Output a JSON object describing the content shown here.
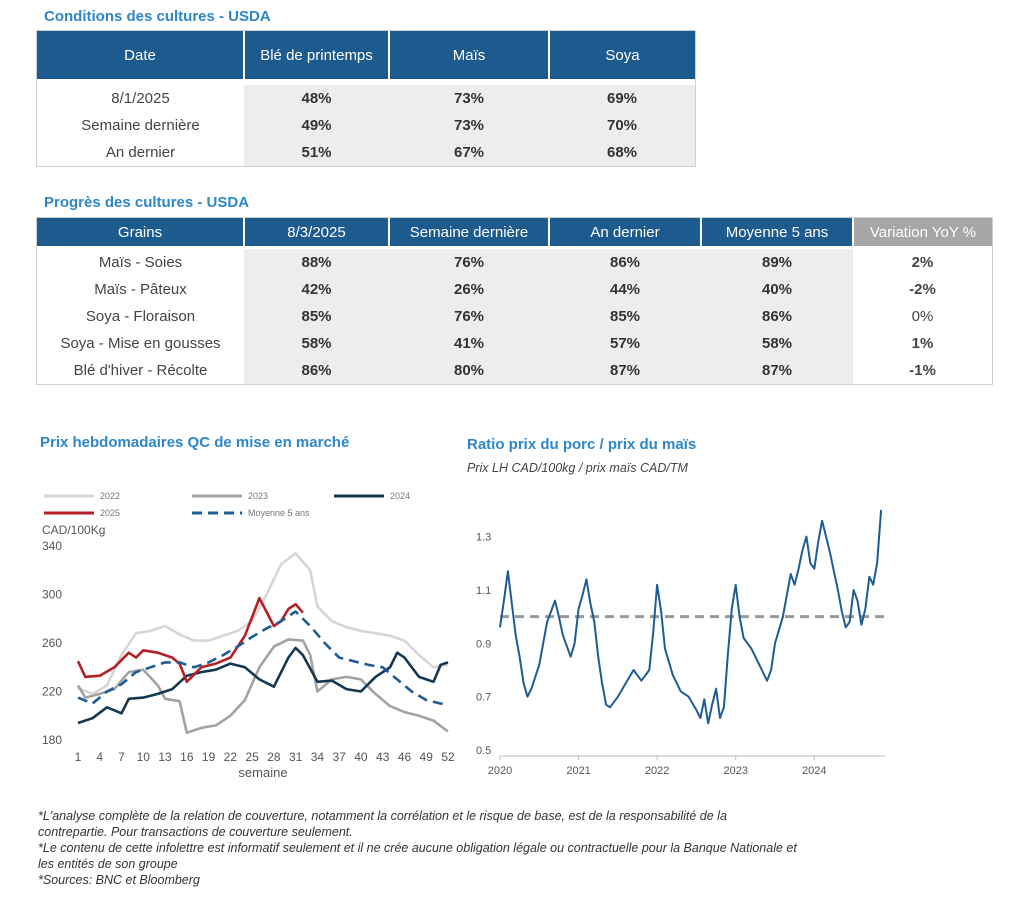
{
  "conditions": {
    "title": "Conditions des cultures - USDA",
    "headers": [
      "Date",
      "Blé de printemps",
      "Maïs",
      "Soya"
    ],
    "rows": [
      [
        "8/1/2025",
        "48%",
        "73%",
        "69%"
      ],
      [
        "Semaine dernière",
        "49%",
        "73%",
        "70%"
      ],
      [
        "An dernier",
        "51%",
        "67%",
        "68%"
      ]
    ]
  },
  "progress": {
    "title": "Progrès des cultures - USDA",
    "headers": [
      "Grains",
      "8/3/2025",
      "Semaine dernière",
      "An dernier",
      "Moyenne 5 ans",
      "Variation YoY %"
    ],
    "rows": [
      [
        "Maïs - Soies",
        "88%",
        "76%",
        "86%",
        "89%",
        "2%"
      ],
      [
        "Maïs - Pâteux",
        "42%",
        "26%",
        "44%",
        "40%",
        "-2%"
      ],
      [
        "Soya - Floraison",
        "85%",
        "76%",
        "85%",
        "86%",
        "0%"
      ],
      [
        "Soya - Mise en gousses",
        "58%",
        "41%",
        "57%",
        "58%",
        "1%"
      ],
      [
        "Blé d'hiver - Récolte",
        "86%",
        "80%",
        "87%",
        "87%",
        "-1%"
      ]
    ],
    "yoy_colors": {
      "positive": "#2c7a2c",
      "negative": "#b02020",
      "zero": "#333333"
    }
  },
  "chart_data": [
    {
      "type": "line",
      "title": "Prix hebdomadaires QC de mise en marché",
      "ylabel": "CAD/100Kg",
      "xlabel": "semaine",
      "ylim": [
        180,
        340
      ],
      "yticks": [
        180,
        220,
        260,
        300,
        340
      ],
      "xticks": [
        1,
        4,
        7,
        10,
        13,
        16,
        19,
        22,
        25,
        28,
        31,
        34,
        37,
        40,
        43,
        46,
        49,
        52
      ],
      "legend_position": "top",
      "series": [
        {
          "name": "2022",
          "color": "#d6d6d6",
          "dash": false,
          "points": [
            [
              1,
              223
            ],
            [
              3,
              218
            ],
            [
              5,
              225
            ],
            [
              7,
              250
            ],
            [
              9,
              268
            ],
            [
              11,
              270
            ],
            [
              13,
              274
            ],
            [
              15,
              267
            ],
            [
              17,
              262
            ],
            [
              19,
              262
            ],
            [
              21,
              266
            ],
            [
              23,
              270
            ],
            [
              25,
              278
            ],
            [
              27,
              300
            ],
            [
              29,
              325
            ],
            [
              31,
              334
            ],
            [
              33,
              320
            ],
            [
              34,
              290
            ],
            [
              36,
              278
            ],
            [
              38,
              273
            ],
            [
              40,
              270
            ],
            [
              42,
              268
            ],
            [
              44,
              266
            ],
            [
              46,
              262
            ],
            [
              48,
              250
            ],
            [
              50,
              240
            ],
            [
              52,
              242
            ]
          ]
        },
        {
          "name": "2023",
          "color": "#a3a3a3",
          "dash": false,
          "points": [
            [
              1,
              225
            ],
            [
              2,
              215
            ],
            [
              4,
              218
            ],
            [
              6,
              222
            ],
            [
              8,
              236
            ],
            [
              10,
              238
            ],
            [
              12,
              225
            ],
            [
              13,
              214
            ],
            [
              15,
              212
            ],
            [
              16,
              186
            ],
            [
              18,
              190
            ],
            [
              20,
              192
            ],
            [
              22,
              200
            ],
            [
              24,
              213
            ],
            [
              26,
              240
            ],
            [
              28,
              257
            ],
            [
              30,
              263
            ],
            [
              32,
              262
            ],
            [
              33,
              250
            ],
            [
              34,
              220
            ],
            [
              36,
              230
            ],
            [
              38,
              232
            ],
            [
              40,
              230
            ],
            [
              42,
              218
            ],
            [
              44,
              208
            ],
            [
              46,
              203
            ],
            [
              48,
              200
            ],
            [
              50,
              196
            ],
            [
              52,
              187
            ]
          ]
        },
        {
          "name": "2024",
          "color": "#16384f",
          "dash": false,
          "points": [
            [
              1,
              194
            ],
            [
              3,
              198
            ],
            [
              5,
              207
            ],
            [
              7,
              202
            ],
            [
              8,
              214
            ],
            [
              10,
              215
            ],
            [
              12,
              218
            ],
            [
              14,
              222
            ],
            [
              16,
              233
            ],
            [
              18,
              236
            ],
            [
              20,
              238
            ],
            [
              22,
              243
            ],
            [
              24,
              240
            ],
            [
              26,
              230
            ],
            [
              28,
              224
            ],
            [
              30,
              248
            ],
            [
              31,
              256
            ],
            [
              32,
              250
            ],
            [
              34,
              228
            ],
            [
              36,
              229
            ],
            [
              38,
              222
            ],
            [
              40,
              220
            ],
            [
              42,
              232
            ],
            [
              44,
              240
            ],
            [
              45,
              252
            ],
            [
              46,
              248
            ],
            [
              48,
              232
            ],
            [
              50,
              228
            ],
            [
              51,
              242
            ],
            [
              52,
              244
            ]
          ]
        },
        {
          "name": "2025",
          "color": "#b52026",
          "dash": false,
          "points": [
            [
              1,
              245
            ],
            [
              2,
              232
            ],
            [
              4,
              233
            ],
            [
              6,
              240
            ],
            [
              8,
              252
            ],
            [
              9,
              248
            ],
            [
              10,
              254
            ],
            [
              12,
              252
            ],
            [
              14,
              248
            ],
            [
              15,
              243
            ],
            [
              16,
              228
            ],
            [
              18,
              240
            ],
            [
              20,
              243
            ],
            [
              22,
              248
            ],
            [
              24,
              266
            ],
            [
              26,
              297
            ],
            [
              28,
              274
            ],
            [
              29,
              278
            ],
            [
              30,
              288
            ],
            [
              31,
              292
            ],
            [
              32,
              285
            ]
          ]
        },
        {
          "name": "Moyenne 5 ans",
          "color": "#1f5c92",
          "dash": true,
          "points": [
            [
              1,
              215
            ],
            [
              3,
              210
            ],
            [
              5,
              220
            ],
            [
              7,
              226
            ],
            [
              9,
              236
            ],
            [
              11,
              240
            ],
            [
              13,
              244
            ],
            [
              15,
              244
            ],
            [
              17,
              240
            ],
            [
              19,
              244
            ],
            [
              21,
              250
            ],
            [
              23,
              257
            ],
            [
              25,
              265
            ],
            [
              27,
              272
            ],
            [
              29,
              278
            ],
            [
              31,
              286
            ],
            [
              33,
              274
            ],
            [
              35,
              260
            ],
            [
              37,
              248
            ],
            [
              39,
              245
            ],
            [
              41,
              242
            ],
            [
              43,
              240
            ],
            [
              45,
              230
            ],
            [
              47,
              220
            ],
            [
              49,
              213
            ],
            [
              51,
              210
            ],
            [
              52,
              210
            ]
          ]
        }
      ]
    },
    {
      "type": "line",
      "title": "Ratio prix du porc / prix du maïs",
      "subtitle": "Prix LH CAD/100kg / prix maïs CAD/TM",
      "ylim": [
        0.5,
        1.4
      ],
      "yticks": [
        0.5,
        0.7,
        0.9,
        1.1,
        1.3
      ],
      "xticks": [
        "2020",
        "2021",
        "2022",
        "2023",
        "2024"
      ],
      "reference_line": 1.0,
      "series": [
        {
          "color": "#1f5c92",
          "points": [
            [
              2020.0,
              0.96
            ],
            [
              2020.05,
              1.06
            ],
            [
              2020.1,
              1.17
            ],
            [
              2020.15,
              1.05
            ],
            [
              2020.2,
              0.93
            ],
            [
              2020.25,
              0.85
            ],
            [
              2020.3,
              0.75
            ],
            [
              2020.35,
              0.7
            ],
            [
              2020.4,
              0.73
            ],
            [
              2020.5,
              0.82
            ],
            [
              2020.6,
              0.98
            ],
            [
              2020.7,
              1.06
            ],
            [
              2020.75,
              1.0
            ],
            [
              2020.8,
              0.93
            ],
            [
              2020.9,
              0.85
            ],
            [
              2020.95,
              0.9
            ],
            [
              2021.0,
              1.03
            ],
            [
              2021.05,
              1.08
            ],
            [
              2021.1,
              1.14
            ],
            [
              2021.15,
              1.05
            ],
            [
              2021.2,
              0.98
            ],
            [
              2021.25,
              0.85
            ],
            [
              2021.3,
              0.75
            ],
            [
              2021.35,
              0.67
            ],
            [
              2021.4,
              0.66
            ],
            [
              2021.5,
              0.7
            ],
            [
              2021.6,
              0.75
            ],
            [
              2021.7,
              0.8
            ],
            [
              2021.8,
              0.76
            ],
            [
              2021.9,
              0.8
            ],
            [
              2021.95,
              0.94
            ],
            [
              2022.0,
              1.12
            ],
            [
              2022.05,
              1.02
            ],
            [
              2022.1,
              0.88
            ],
            [
              2022.2,
              0.78
            ],
            [
              2022.3,
              0.72
            ],
            [
              2022.4,
              0.7
            ],
            [
              2022.5,
              0.65
            ],
            [
              2022.55,
              0.62
            ],
            [
              2022.6,
              0.69
            ],
            [
              2022.65,
              0.6
            ],
            [
              2022.7,
              0.67
            ],
            [
              2022.75,
              0.73
            ],
            [
              2022.8,
              0.62
            ],
            [
              2022.85,
              0.66
            ],
            [
              2022.9,
              0.86
            ],
            [
              2022.95,
              1.03
            ],
            [
              2023.0,
              1.12
            ],
            [
              2023.05,
              1.0
            ],
            [
              2023.1,
              0.92
            ],
            [
              2023.2,
              0.88
            ],
            [
              2023.3,
              0.82
            ],
            [
              2023.4,
              0.76
            ],
            [
              2023.45,
              0.8
            ],
            [
              2023.5,
              0.9
            ],
            [
              2023.6,
              1.0
            ],
            [
              2023.7,
              1.16
            ],
            [
              2023.75,
              1.12
            ],
            [
              2023.8,
              1.18
            ],
            [
              2023.85,
              1.25
            ],
            [
              2023.9,
              1.3
            ],
            [
              2023.95,
              1.2
            ],
            [
              2024.0,
              1.18
            ],
            [
              2024.05,
              1.28
            ],
            [
              2024.1,
              1.36
            ],
            [
              2024.15,
              1.3
            ],
            [
              2024.2,
              1.24
            ],
            [
              2024.25,
              1.17
            ],
            [
              2024.3,
              1.1
            ],
            [
              2024.35,
              1.02
            ],
            [
              2024.4,
              0.96
            ],
            [
              2024.45,
              0.98
            ],
            [
              2024.5,
              1.1
            ],
            [
              2024.55,
              1.06
            ],
            [
              2024.6,
              0.97
            ],
            [
              2024.65,
              1.03
            ],
            [
              2024.7,
              1.15
            ],
            [
              2024.75,
              1.12
            ],
            [
              2024.8,
              1.2
            ],
            [
              2024.85,
              1.4
            ]
          ]
        }
      ]
    }
  ],
  "notes": [
    "*L'analyse complète de la relation de couverture, notamment la corrélation et le risque de base, est de la responsabilité de la contrepartie. Pour transactions de couverture seulement.",
    "*Le contenu de cette infolettre est informatif seulement et il ne crée aucune obligation légale ou contractuelle pour la Banque Nationale et les entités de son groupe",
    "*Sources: BNC et Bloomberg"
  ]
}
